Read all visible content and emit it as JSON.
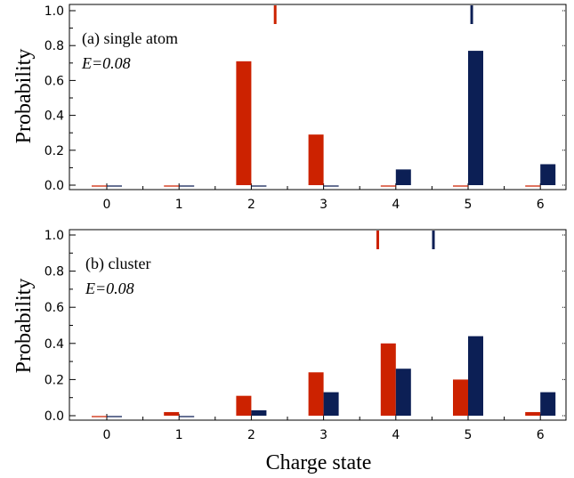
{
  "colors": {
    "atom": "#cc2200",
    "cluster": "#0c1f55",
    "frame": "#000000"
  },
  "xlabel": "Charge state",
  "chart_data": [
    {
      "type": "bar",
      "panel_label": "(a)  single atom",
      "energy_label": "E=0.08",
      "ylabel": "Probability",
      "xlabel": "",
      "categories": [
        "0",
        "1",
        "2",
        "3",
        "4",
        "5",
        "6"
      ],
      "yticks": [
        "0.0",
        "0.2",
        "0.4",
        "0.6",
        "0.8",
        "1.0"
      ],
      "ylim": [
        -0.02,
        1.02
      ],
      "series": [
        {
          "color": "#cc2200",
          "values": [
            0.0,
            0.0,
            0.71,
            0.29,
            0.0,
            0.0,
            0.0
          ]
        },
        {
          "color": "#0c1f55",
          "values": [
            0.0,
            0.0,
            0.0,
            0.0,
            0.09,
            0.77,
            0.12
          ]
        }
      ],
      "markers": [
        {
          "x": 2.33,
          "color": "#cc2200"
        },
        {
          "x": 5.05,
          "color": "#0c1f55"
        }
      ]
    },
    {
      "type": "bar",
      "panel_label": "(b)  cluster",
      "energy_label": "E=0.08",
      "ylabel": "Probability",
      "xlabel": "Charge state",
      "categories": [
        "0",
        "1",
        "2",
        "3",
        "4",
        "5",
        "6"
      ],
      "yticks": [
        "0.0",
        "0.2",
        "0.4",
        "0.6",
        "0.8",
        "1.0"
      ],
      "ylim": [
        -0.02,
        1.02
      ],
      "series": [
        {
          "color": "#cc2200",
          "values": [
            0.0,
            0.02,
            0.11,
            0.24,
            0.4,
            0.2,
            0.02
          ]
        },
        {
          "color": "#0c1f55",
          "values": [
            0.0,
            0.0,
            0.03,
            0.13,
            0.26,
            0.44,
            0.13
          ]
        }
      ],
      "markers": [
        {
          "x": 3.75,
          "color": "#cc2200"
        },
        {
          "x": 4.52,
          "color": "#0c1f55"
        }
      ]
    }
  ]
}
